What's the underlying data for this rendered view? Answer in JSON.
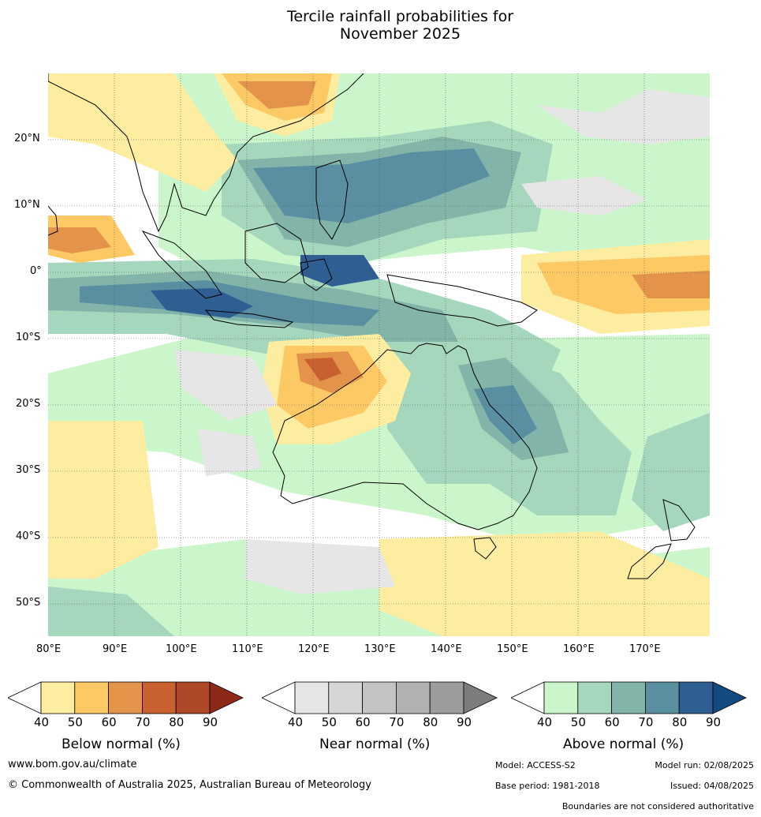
{
  "title_line1": "Tercile rainfall probabilities for",
  "title_line2": "November 2025",
  "lat_labels": [
    "20°N",
    "10°N",
    "0°",
    "10°S",
    "20°S",
    "30°S",
    "40°S",
    "50°S"
  ],
  "lon_labels": [
    "80°E",
    "90°E",
    "100°E",
    "110°E",
    "120°E",
    "130°E",
    "140°E",
    "150°E",
    "160°E",
    "170°E"
  ],
  "colorbars": [
    {
      "title": "Below normal (%)",
      "ticks": [
        "40",
        "50",
        "60",
        "70",
        "80",
        "90"
      ],
      "colors": [
        "#fdeda0",
        "#fdc965",
        "#e3944a",
        "#c9602f",
        "#ae4628",
        "#8c2a17"
      ]
    },
    {
      "title": "Near normal (%)",
      "ticks": [
        "40",
        "50",
        "60",
        "70",
        "80",
        "90"
      ],
      "colors": [
        "#e6e6e6",
        "#d6d6d6",
        "#c4c4c4",
        "#b1b1b1",
        "#9c9c9c",
        "#7c7c7c"
      ]
    },
    {
      "title": "Above normal (%)",
      "ticks": [
        "40",
        "50",
        "60",
        "70",
        "80",
        "90"
      ],
      "colors": [
        "#cbf6cb",
        "#a5d7bc",
        "#82b4a9",
        "#5a8fa1",
        "#2e5e92",
        "#144a80"
      ]
    }
  ],
  "footer": {
    "site": "www.bom.gov.au/climate",
    "copyright": "© Commonwealth of Australia 2025, Australian Bureau of Meteorology",
    "model": "Model: ACCESS-S2",
    "model_run": "Model run: 02/08/2025",
    "base_period": "Base period: 1981-2018",
    "issued": "Issued: 04/08/2025",
    "disclaimer": "Boundaries are not considered authoritative"
  }
}
